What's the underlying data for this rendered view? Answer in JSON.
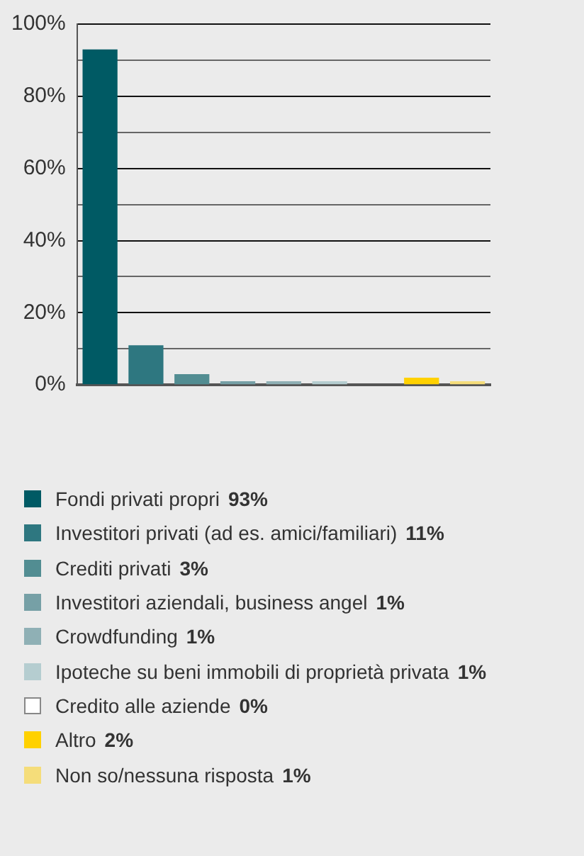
{
  "chart_data": {
    "type": "bar",
    "categories": [
      null
    ],
    "series": [
      {
        "name": "Fondi privati propri 93%",
        "color": "#005a64",
        "values": [
          93
        ]
      },
      {
        "name": "Investitori privati (ad es. amici/familiari) 11%",
        "color": "#2e7780",
        "values": [
          11
        ]
      },
      {
        "name": "Crediti privati 3%",
        "color": "#528d92",
        "values": [
          3
        ]
      },
      {
        "name": "Investitori aziendali, business angel 1%",
        "color": "#76a0a6",
        "values": [
          1
        ]
      },
      {
        "name": "Crowdfunding 1%",
        "color": "#8fb0b5",
        "values": [
          1
        ]
      },
      {
        "name": "Ipoteche su beni immobili di proprietà privata 1%",
        "color": "#b5cdd0",
        "values": [
          1
        ]
      },
      {
        "name": "Credito alle aziende 0%",
        "color": "#ffffff",
        "values": [
          0
        ]
      },
      {
        "name": "Altro 2%",
        "color": "#ffd100",
        "values": [
          2
        ]
      },
      {
        "name": "Non so/nessuna risposta 1%",
        "color": "#f5dd7a",
        "values": [
          1
        ]
      }
    ],
    "ylim": [
      0,
      100
    ],
    "yticks": [
      {
        "value": 0,
        "label": "0%"
      },
      {
        "value": 10,
        "label": null
      },
      {
        "value": 20,
        "label": "20%"
      },
      {
        "value": 30,
        "label": null
      },
      {
        "value": 40,
        "label": "40%"
      },
      {
        "value": 50,
        "label": null
      },
      {
        "value": 60,
        "label": "60%"
      },
      {
        "value": 70,
        "label": null
      },
      {
        "value": 80,
        "label": "80%"
      },
      {
        "value": 90,
        "label": null
      },
      {
        "value": 100,
        "label": "100%"
      }
    ],
    "grid": "y",
    "legend": "bottom"
  }
}
